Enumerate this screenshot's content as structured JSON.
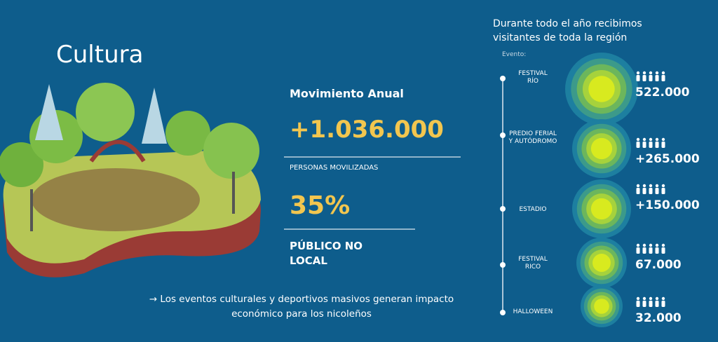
{
  "title": "Cultura",
  "stats": {
    "heading": "Movimiento Anual",
    "total": "+1.036.000",
    "total_caption": "PERSONAS MOVILIZADAS",
    "share": "35%",
    "share_caption": "PÚBLICO NO\nLOCAL"
  },
  "footnote": "→ Los eventos culturales y deportivos masivos generan impacto\neconómico para los nicoleños",
  "timeline": {
    "heading": "Durante  todo el año recibimos\nvisitantes de toda la región",
    "legend": "Evento:",
    "events": [
      {
        "label": "FESTIVAL\nRÍO",
        "visitors": "522.000"
      },
      {
        "label": "PREDIO FERIAL\nY AUTÓDROMO",
        "visitors": "+265.000"
      },
      {
        "label": "ESTADIO",
        "visitors": "+150.000"
      },
      {
        "label": "FESTIVAL\nRICO",
        "visitors": "67.000"
      },
      {
        "label": "HALLOWEEN",
        "visitors": "32.000"
      }
    ]
  }
}
